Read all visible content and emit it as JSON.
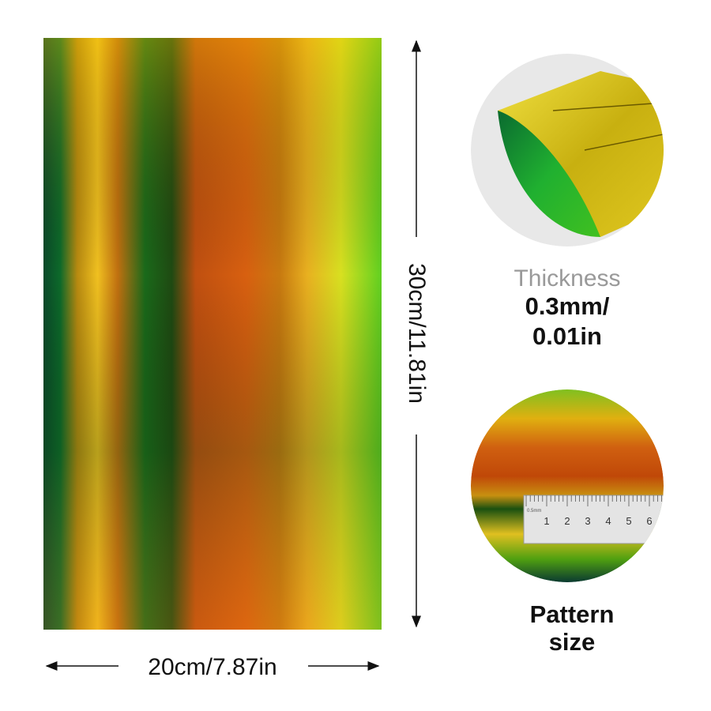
{
  "sheet": {
    "width_label": "20cm/7.87in",
    "height_label": "30cm/11.81in"
  },
  "thickness": {
    "title": "Thickness",
    "lines": [
      "0.3mm/",
      "0.01in"
    ]
  },
  "pattern": {
    "lines": [
      "Pattern",
      "size"
    ],
    "ruler_unit": "0.5mm",
    "ruler_marks": [
      "1",
      "2",
      "3",
      "4",
      "5",
      "6"
    ]
  }
}
